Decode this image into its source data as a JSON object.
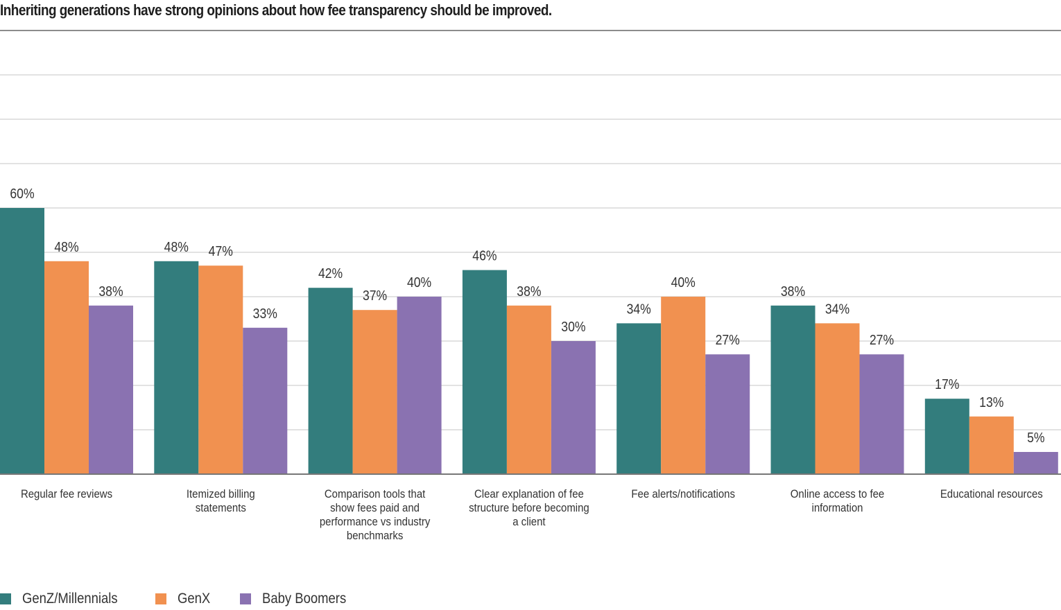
{
  "chart_data": {
    "type": "bar",
    "title": "Inheriting generations have strong opinions about how fee transparency should be improved.",
    "xlabel": "",
    "ylabel": "",
    "ylim": [
      0,
      100
    ],
    "grid": true,
    "legend_position": "bottom-left",
    "categories": [
      "Regular fee reviews",
      "Itemized billing statements",
      "Comparison tools that show fees paid and performance vs industry benchmarks",
      "Clear explanation of fee structure before becoming a client",
      "Fee alerts/notifications",
      "Online access to fee information",
      "Educational resources"
    ],
    "category_label_lines": [
      [
        "Regular fee reviews"
      ],
      [
        "Itemized billing",
        "statements"
      ],
      [
        "Comparison tools that",
        "show fees paid and",
        "performance vs industry",
        "benchmarks"
      ],
      [
        "Clear explanation of fee",
        "structure before becoming",
        "a client"
      ],
      [
        "Fee alerts/notifications"
      ],
      [
        "Online access to fee",
        "information"
      ],
      [
        "Educational resources"
      ]
    ],
    "series": [
      {
        "name": "GenZ/Millennials",
        "color": "#337d7d",
        "values": [
          60,
          48,
          42,
          46,
          34,
          38,
          17
        ]
      },
      {
        "name": "GenX",
        "color": "#f19150",
        "values": [
          48,
          47,
          37,
          38,
          40,
          34,
          13
        ]
      },
      {
        "name": "Baby Boomers",
        "color": "#8a72b1",
        "values": [
          38,
          33,
          40,
          30,
          27,
          27,
          5
        ]
      }
    ],
    "value_suffix": "%"
  }
}
